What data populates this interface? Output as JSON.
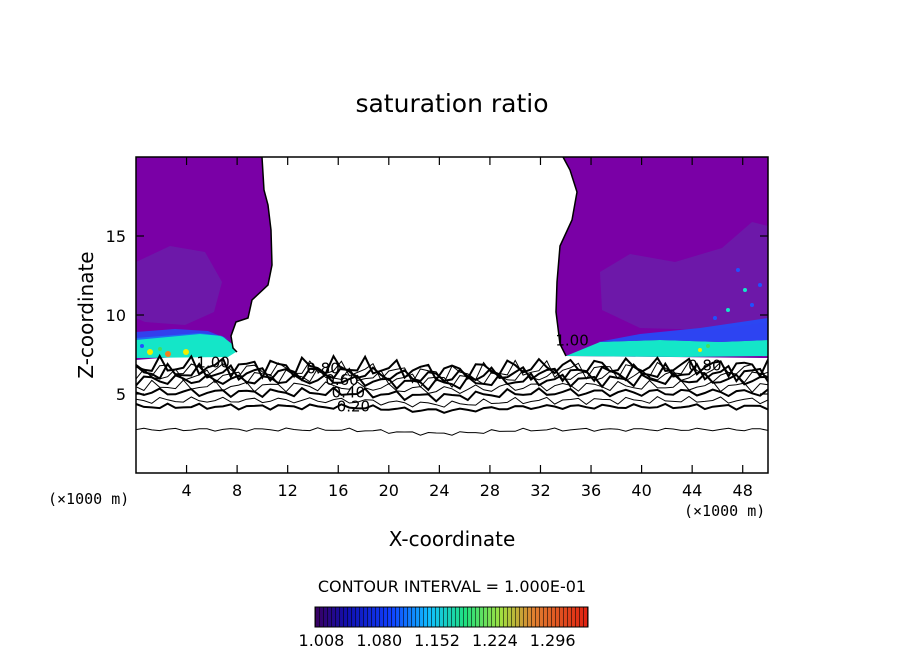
{
  "chart_data": {
    "type": "heatmap",
    "title": "saturation ratio",
    "xlabel": "X-coordinate",
    "ylabel": "Z-coordinate",
    "x_unit": "(×1000 m)",
    "x_ticks": [
      4,
      8,
      12,
      16,
      20,
      24,
      28,
      32,
      36,
      40,
      44,
      48
    ],
    "y_ticks": [
      5,
      10,
      15
    ],
    "xlim": [
      0,
      50
    ],
    "ylim": [
      0,
      20
    ],
    "contour_interval_text": "CONTOUR INTERVAL = 1.000E-01",
    "contour_interval": 0.1,
    "contour_labels": [
      {
        "text": "1.00",
        "x": 6.1,
        "z": 7.0
      },
      {
        "text": "0.80",
        "x": 14.8,
        "z": 6.6
      },
      {
        "text": "0.60",
        "x": 16.3,
        "z": 5.9
      },
      {
        "text": "0.40",
        "x": 16.8,
        "z": 5.1
      },
      {
        "text": "0.20",
        "x": 17.2,
        "z": 4.2
      },
      {
        "text": "1.00",
        "x": 34.5,
        "z": 8.4
      },
      {
        "text": "0.80",
        "x": 45.0,
        "z": 6.8
      }
    ],
    "contour_levels_z": [
      2.75,
      4.2,
      4.6,
      5.1,
      5.5,
      5.9,
      6.15,
      6.35,
      6.55,
      6.75
    ],
    "colorbar": {
      "ticks": [
        "1.008",
        "1.080",
        "1.152",
        "1.224",
        "1.296"
      ],
      "min": 1.0,
      "max": 1.34
    },
    "colors": {
      "field_purple": "#7a00a6",
      "field_darker": "#6a1aa8",
      "cyan": "#14e6c8",
      "blue": "#2050ff",
      "green": "#40e060",
      "yellow": "#f0f000"
    }
  }
}
